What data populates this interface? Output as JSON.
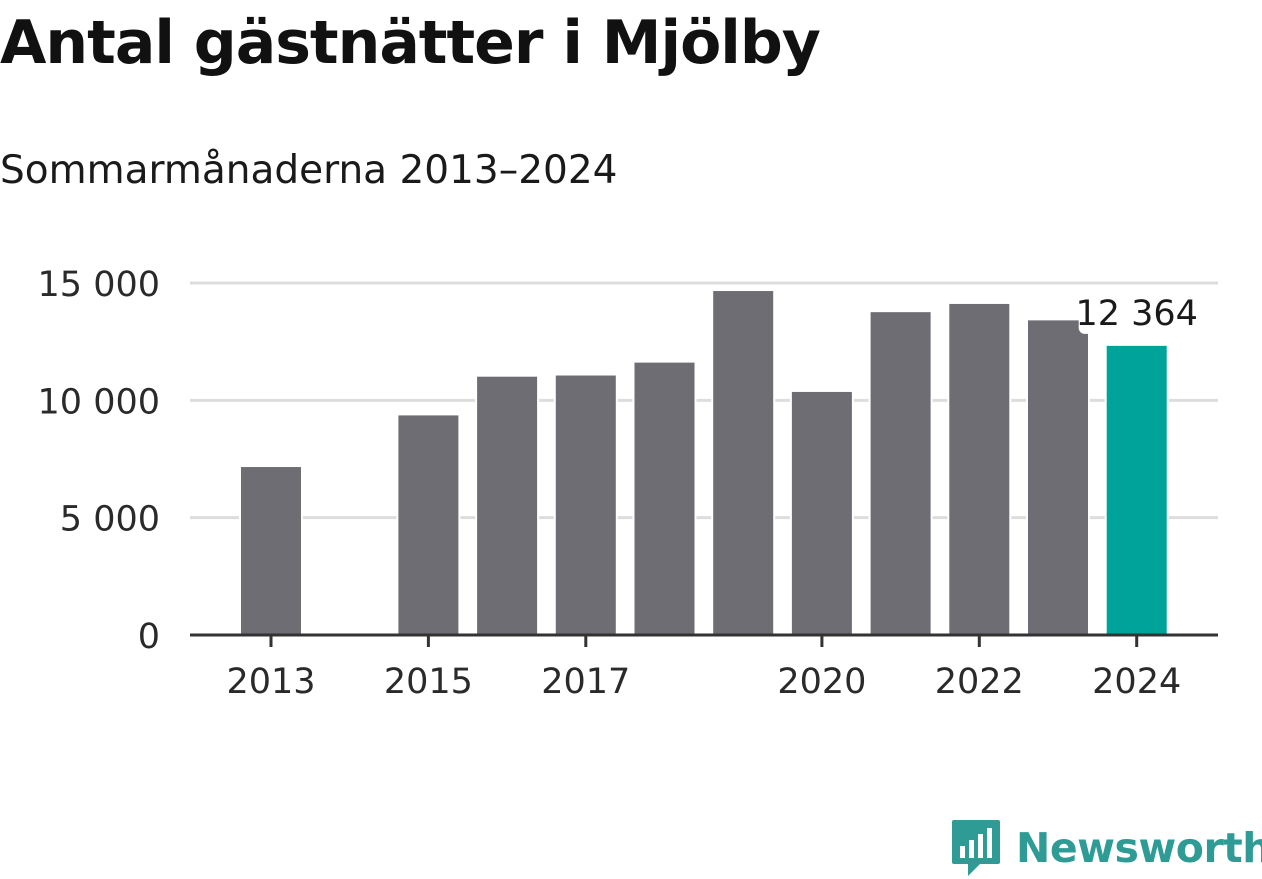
{
  "title": "Antal gästnätter i Mjölby",
  "subtitle": "Sommarmånaderna 2013–2024",
  "brand": {
    "name": "Newsworthy",
    "icon": "bar-chart-speech-bubble-icon"
  },
  "colors": {
    "bar": "#6e6d74",
    "highlight": "#00a39a",
    "grid": "#dddddd",
    "axis": "#333333",
    "brand": "#2f9b95"
  },
  "chart_data": {
    "type": "bar",
    "title": "Antal gästnätter i Mjölby",
    "subtitle": "Sommarmånaderna 2013–2024",
    "categories": [
      "2013",
      "2014",
      "2015",
      "2016",
      "2017",
      "2018",
      "2019",
      "2020",
      "2021",
      "2022",
      "2023",
      "2024"
    ],
    "values": [
      7200,
      null,
      9400,
      11050,
      11100,
      11650,
      14700,
      10400,
      13800,
      14150,
      13450,
      12364
    ],
    "ylim": [
      0,
      15000
    ],
    "yticks": [
      0,
      5000,
      10000,
      15000
    ],
    "ytick_labels": [
      "0",
      "5 000",
      "10 000",
      "15 000"
    ],
    "xtick_labels": [
      "2013",
      "2015",
      "2017",
      "2020",
      "2022",
      "2024"
    ],
    "highlight_category": "2024",
    "annotation": {
      "category": "2024",
      "text": "12 364"
    },
    "grid": true,
    "legend": "none"
  }
}
